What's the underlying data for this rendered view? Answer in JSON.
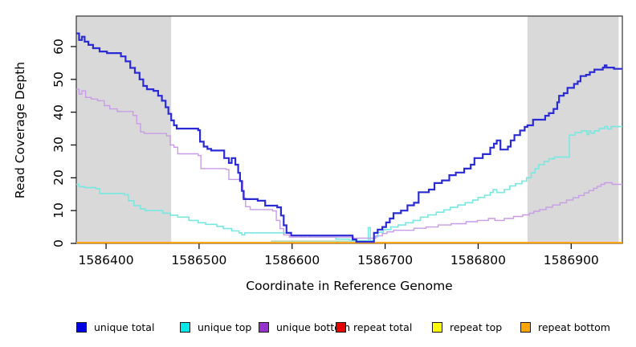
{
  "chart_data": {
    "type": "line",
    "step": true,
    "title": "",
    "xlabel": "Coordinate in Reference Genome",
    "ylabel": "Read Coverage Depth",
    "xlim": [
      1586368,
      1586955
    ],
    "ylim": [
      0,
      69.3
    ],
    "x_ticks": [
      1586400,
      1586500,
      1586600,
      1586700,
      1586800,
      1586900
    ],
    "y_ticks": [
      0,
      10,
      20,
      30,
      40,
      50,
      60
    ],
    "grid": "off",
    "legend_position": "bottom",
    "shade_color": "#d9d9d9",
    "box_color": "#404040",
    "shaded_regions": [
      {
        "x0": 1586368,
        "x1": 1586470
      },
      {
        "x0": 1586853,
        "x1": 1586951
      }
    ],
    "series": [
      {
        "name": "unique total",
        "swatch_color": "#0000e0",
        "line_color": "#2b2bd5",
        "line_width": 2.2,
        "points": [
          [
            1586368,
            64
          ],
          [
            1586371,
            62
          ],
          [
            1586374,
            63
          ],
          [
            1586377,
            61.5
          ],
          [
            1586381,
            60.5
          ],
          [
            1586386,
            59.5
          ],
          [
            1586393,
            58.5
          ],
          [
            1586401,
            58
          ],
          [
            1586416,
            57
          ],
          [
            1586421,
            55.5
          ],
          [
            1586426,
            53.5
          ],
          [
            1586431,
            52
          ],
          [
            1586436,
            50
          ],
          [
            1586440,
            48
          ],
          [
            1586444,
            47
          ],
          [
            1586451,
            46.5
          ],
          [
            1586456,
            45
          ],
          [
            1586460,
            43.5
          ],
          [
            1586464,
            41.5
          ],
          [
            1586467,
            39.5
          ],
          [
            1586470,
            37.5
          ],
          [
            1586473,
            36
          ],
          [
            1586476,
            35
          ],
          [
            1586499,
            34.5
          ],
          [
            1586501,
            31
          ],
          [
            1586505,
            29.5
          ],
          [
            1586509,
            28.8
          ],
          [
            1586513,
            28.3
          ],
          [
            1586527,
            26
          ],
          [
            1586532,
            24.5
          ],
          [
            1586535,
            26
          ],
          [
            1586539,
            24
          ],
          [
            1586542,
            21.5
          ],
          [
            1586544,
            19
          ],
          [
            1586546,
            16
          ],
          [
            1586548,
            13.5
          ],
          [
            1586563,
            13
          ],
          [
            1586571,
            11.5
          ],
          [
            1586584,
            11
          ],
          [
            1586588,
            8.5
          ],
          [
            1586591,
            5.5
          ],
          [
            1586594,
            3.2
          ],
          [
            1586599,
            2.4
          ],
          [
            1586662,
            2.4
          ],
          [
            1586665,
            1.2
          ],
          [
            1586669,
            0.5
          ],
          [
            1586686,
            0.5
          ],
          [
            1586688,
            3.2
          ],
          [
            1586692,
            4.2
          ],
          [
            1586697,
            5
          ],
          [
            1586701,
            6.4
          ],
          [
            1586705,
            7.6
          ],
          [
            1586709,
            9.2
          ],
          [
            1586717,
            10
          ],
          [
            1586724,
            11.6
          ],
          [
            1586731,
            12.4
          ],
          [
            1586736,
            15.6
          ],
          [
            1586747,
            16.4
          ],
          [
            1586753,
            18.4
          ],
          [
            1586761,
            19.2
          ],
          [
            1586769,
            20.8
          ],
          [
            1586776,
            21.6
          ],
          [
            1586785,
            22.8
          ],
          [
            1586792,
            24
          ],
          [
            1586796,
            26
          ],
          [
            1586805,
            27.2
          ],
          [
            1586813,
            29.2
          ],
          [
            1586817,
            30.4
          ],
          [
            1586820,
            31.4
          ],
          [
            1586824,
            28.6
          ],
          [
            1586832,
            29.5
          ],
          [
            1586835,
            31.4
          ],
          [
            1586839,
            33
          ],
          [
            1586845,
            34.4
          ],
          [
            1586850,
            35.5
          ],
          [
            1586853,
            36
          ],
          [
            1586859,
            37.7
          ],
          [
            1586872,
            38.9
          ],
          [
            1586876,
            39.7
          ],
          [
            1586881,
            41
          ],
          [
            1586885,
            43
          ],
          [
            1586887,
            45
          ],
          [
            1586892,
            45.8
          ],
          [
            1586896,
            47.4
          ],
          [
            1586903,
            48.6
          ],
          [
            1586907,
            49.4
          ],
          [
            1586910,
            51
          ],
          [
            1586916,
            51.4
          ],
          [
            1586920,
            52.2
          ],
          [
            1586925,
            53
          ],
          [
            1586934,
            53.6
          ],
          [
            1586936,
            54.3
          ],
          [
            1586938,
            53.6
          ],
          [
            1586946,
            53.2
          ],
          [
            1586955,
            53.2
          ]
        ]
      },
      {
        "name": "unique top",
        "swatch_color": "#00e8e8",
        "line_color": "#78e8e0",
        "line_width": 1.6,
        "points": [
          [
            1586368,
            18
          ],
          [
            1586371,
            17.3
          ],
          [
            1586377,
            17
          ],
          [
            1586389,
            16.7
          ],
          [
            1586393,
            15.2
          ],
          [
            1586420,
            14.8
          ],
          [
            1586424,
            13
          ],
          [
            1586430,
            11.5
          ],
          [
            1586437,
            10.5
          ],
          [
            1586442,
            10
          ],
          [
            1586461,
            9.2
          ],
          [
            1586469,
            8.6
          ],
          [
            1586477,
            8
          ],
          [
            1586489,
            7
          ],
          [
            1586499,
            6.3
          ],
          [
            1586507,
            5.8
          ],
          [
            1586519,
            5.2
          ],
          [
            1586526,
            4.5
          ],
          [
            1586535,
            3.8
          ],
          [
            1586543,
            3.2
          ],
          [
            1586546,
            2.6
          ],
          [
            1586549,
            3.2
          ],
          [
            1586599,
            2.4
          ],
          [
            1586610,
            1.9
          ],
          [
            1586614,
            2.4
          ],
          [
            1586618,
            1.9
          ],
          [
            1586647,
            1.3
          ],
          [
            1586662,
            0.8
          ],
          [
            1586680,
            0.5
          ],
          [
            1586682,
            4.8
          ],
          [
            1586684,
            0.8
          ],
          [
            1586688,
            2
          ],
          [
            1586692,
            3.4
          ],
          [
            1586698,
            4.2
          ],
          [
            1586706,
            5
          ],
          [
            1586714,
            5.6
          ],
          [
            1586722,
            6.3
          ],
          [
            1586730,
            7
          ],
          [
            1586738,
            8
          ],
          [
            1586746,
            8.7
          ],
          [
            1586755,
            9.5
          ],
          [
            1586763,
            10.2
          ],
          [
            1586770,
            11
          ],
          [
            1586778,
            11.7
          ],
          [
            1586786,
            12.4
          ],
          [
            1586794,
            13.2
          ],
          [
            1586800,
            14
          ],
          [
            1586807,
            14.7
          ],
          [
            1586813,
            15.5
          ],
          [
            1586816,
            16.4
          ],
          [
            1586820,
            15.5
          ],
          [
            1586828,
            16.4
          ],
          [
            1586834,
            17.5
          ],
          [
            1586840,
            18.2
          ],
          [
            1586847,
            19
          ],
          [
            1586852,
            20
          ],
          [
            1586857,
            21.5
          ],
          [
            1586861,
            22.8
          ],
          [
            1586865,
            24
          ],
          [
            1586871,
            25
          ],
          [
            1586876,
            25.8
          ],
          [
            1586882,
            26.3
          ],
          [
            1586898,
            33
          ],
          [
            1586904,
            33.8
          ],
          [
            1586911,
            34.3
          ],
          [
            1586917,
            33.2
          ],
          [
            1586919,
            34.3
          ],
          [
            1586921,
            33.6
          ],
          [
            1586925,
            34.3
          ],
          [
            1586930,
            35
          ],
          [
            1586936,
            35.6
          ],
          [
            1586939,
            34.9
          ],
          [
            1586943,
            35.6
          ],
          [
            1586955,
            35.6
          ]
        ]
      },
      {
        "name": "unique bottom",
        "swatch_color": "#9633cc",
        "line_color": "#c89ce8",
        "line_width": 1.4,
        "points": [
          [
            1586368,
            47
          ],
          [
            1586371,
            45.5
          ],
          [
            1586374,
            46.5
          ],
          [
            1586378,
            44.5
          ],
          [
            1586384,
            44
          ],
          [
            1586391,
            43.5
          ],
          [
            1586398,
            42
          ],
          [
            1586404,
            41
          ],
          [
            1586412,
            40.2
          ],
          [
            1586429,
            39
          ],
          [
            1586433,
            36.5
          ],
          [
            1586437,
            34
          ],
          [
            1586441,
            33.5
          ],
          [
            1586465,
            32.8
          ],
          [
            1586469,
            30
          ],
          [
            1586473,
            29.3
          ],
          [
            1586477,
            27.3
          ],
          [
            1586499,
            26.8
          ],
          [
            1586502,
            22.8
          ],
          [
            1586529,
            22.5
          ],
          [
            1586532,
            19.5
          ],
          [
            1586544,
            19
          ],
          [
            1586547,
            13.8
          ],
          [
            1586550,
            11.2
          ],
          [
            1586555,
            10.3
          ],
          [
            1586579,
            9.9
          ],
          [
            1586583,
            7
          ],
          [
            1586587,
            4.5
          ],
          [
            1586591,
            2.6
          ],
          [
            1586597,
            1.9
          ],
          [
            1586660,
            1.9
          ],
          [
            1586666,
            1.6
          ],
          [
            1586686,
            1.6
          ],
          [
            1586690,
            2.3
          ],
          [
            1586697,
            3
          ],
          [
            1586702,
            3.5
          ],
          [
            1586709,
            4
          ],
          [
            1586731,
            4.6
          ],
          [
            1586744,
            5
          ],
          [
            1586757,
            5.6
          ],
          [
            1586771,
            6
          ],
          [
            1586787,
            6.6
          ],
          [
            1586799,
            7
          ],
          [
            1586811,
            7.6
          ],
          [
            1586818,
            7
          ],
          [
            1586828,
            7.6
          ],
          [
            1586838,
            8.2
          ],
          [
            1586848,
            8.7
          ],
          [
            1586855,
            9.2
          ],
          [
            1586860,
            9.8
          ],
          [
            1586866,
            10.3
          ],
          [
            1586873,
            11
          ],
          [
            1586880,
            11.7
          ],
          [
            1586888,
            12.4
          ],
          [
            1586895,
            13.2
          ],
          [
            1586902,
            13.9
          ],
          [
            1586908,
            14.6
          ],
          [
            1586914,
            15.4
          ],
          [
            1586919,
            16.1
          ],
          [
            1586924,
            16.8
          ],
          [
            1586928,
            17.4
          ],
          [
            1586932,
            18
          ],
          [
            1586936,
            18.5
          ],
          [
            1586944,
            18
          ],
          [
            1586955,
            18
          ]
        ]
      },
      {
        "name": "repeat total",
        "swatch_color": "#e60000",
        "line_color": "#dd0000",
        "line_width": 1.2,
        "points": [
          [
            1586368,
            0.2
          ],
          [
            1586955,
            0.2
          ]
        ]
      },
      {
        "name": "repeat top",
        "swatch_color": "#ffff00",
        "line_color": "#96d6a8",
        "line_width": 1.2,
        "points": [
          [
            1586368,
            0.25
          ],
          [
            1586578,
            0.7
          ],
          [
            1586686,
            0.25
          ],
          [
            1586955,
            0.25
          ]
        ]
      },
      {
        "name": "repeat bottom",
        "swatch_color": "#ffa500",
        "line_color": "#ffa210",
        "line_width": 2.2,
        "points": [
          [
            1586368,
            0.2
          ],
          [
            1586955,
            0.2
          ]
        ]
      }
    ]
  }
}
